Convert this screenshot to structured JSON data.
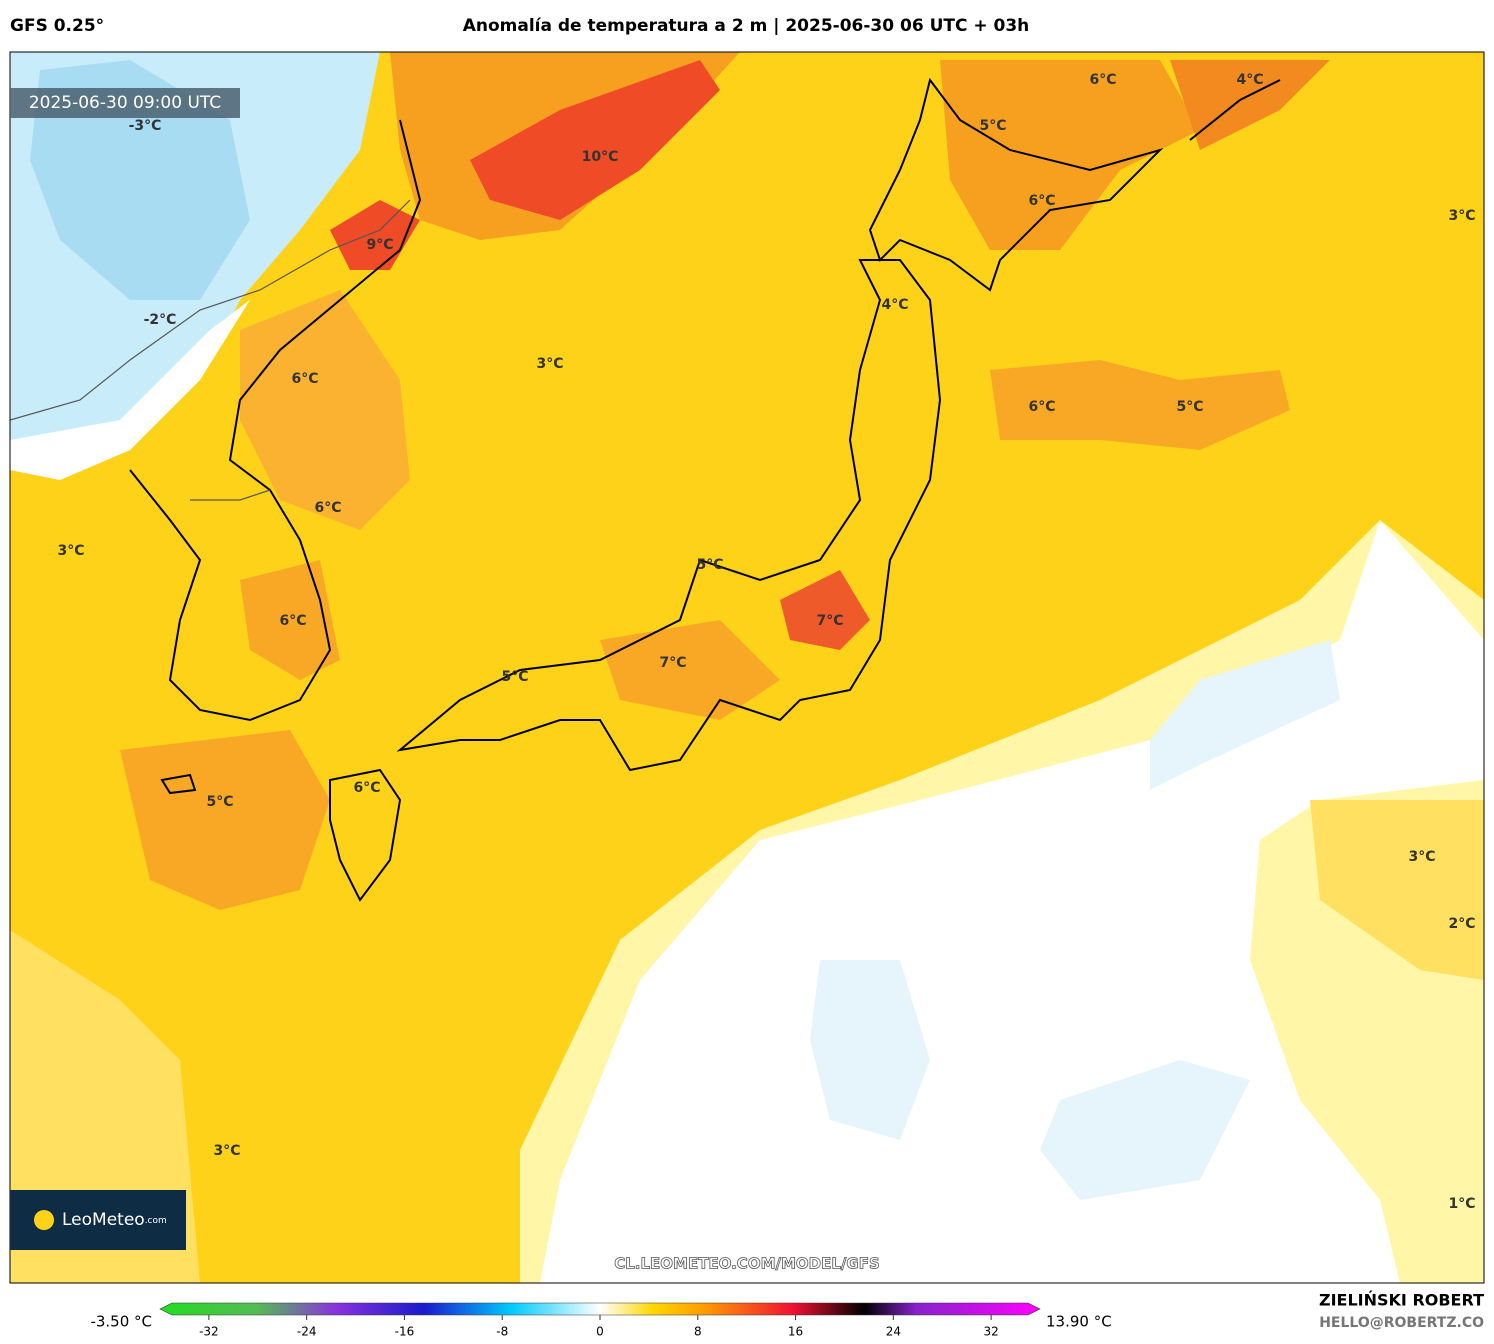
{
  "header": {
    "model": "GFS 0.25°",
    "title": "Anomalía de temperatura a 2 m | 2025-06-30 06 UTC + 03h"
  },
  "timestamp": "2025-06-30 09:00 UTC",
  "map_labels": [
    "-3°C",
    "10°C",
    "6°C",
    "4°C",
    "5°C",
    "6°C",
    "3°C",
    "9°C",
    "-2°C",
    "4°C",
    "3°C",
    "6°C",
    "6°C",
    "5°C",
    "6°C",
    "3°C",
    "5°C",
    "6°C",
    "7°C",
    "7°C",
    "5°C",
    "6°C",
    "5°C",
    "3°C",
    "2°C",
    "3°C",
    "1°C"
  ],
  "logo": {
    "name": "LeoMeteo",
    "suffix": ".com"
  },
  "url": "CL.LEOMETEO.COM/MODEL/GFS",
  "colorbar": {
    "min_label": "-3.50 °C",
    "max_label": "13.90 °C",
    "lim": [
      -36,
      36
    ],
    "ticks": [
      -32,
      -24,
      -16,
      -8,
      0,
      8,
      16,
      24,
      32
    ]
  },
  "credit": {
    "author": "ZIELIŃSKI ROBERT",
    "email": "HELLO@ROBERTZ.CO"
  }
}
